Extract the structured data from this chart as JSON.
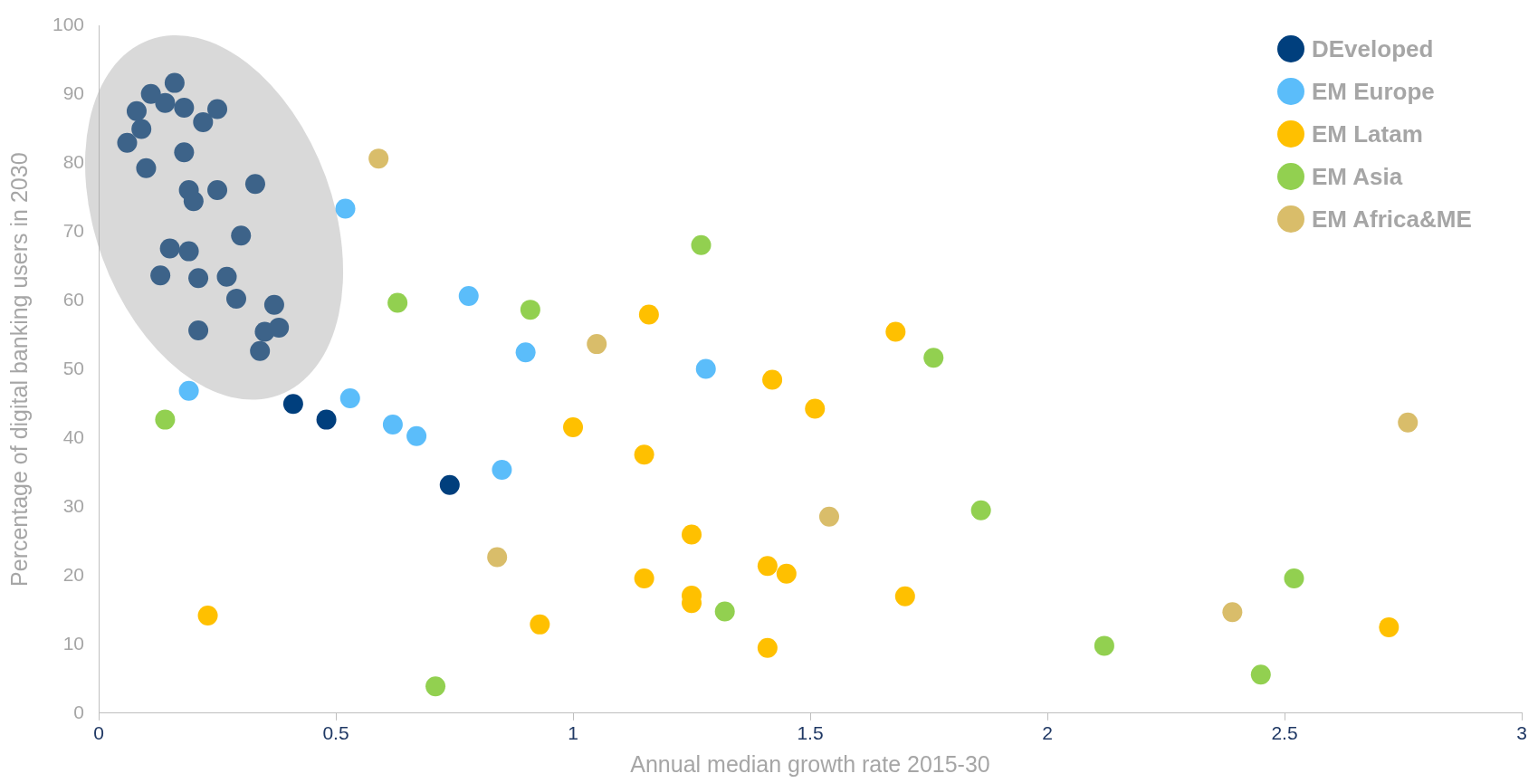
{
  "chart_data": {
    "type": "scatter",
    "xlabel": "Annual median growth rate 2015-30",
    "ylabel": "Percentage of digital banking users in 2030",
    "xlim": [
      0,
      3
    ],
    "xticks": [
      0,
      0.5,
      1,
      1.5,
      2,
      2.5,
      3
    ],
    "ylim": [
      0,
      100
    ],
    "yticks": [
      0,
      10,
      20,
      30,
      40,
      50,
      60,
      70,
      80,
      90,
      100
    ],
    "grid": false,
    "legend": "top right",
    "marker": "circle",
    "series": [
      {
        "name": "DEveloped",
        "color": "#003f7d",
        "x": [
          0.06,
          0.08,
          0.09,
          0.11,
          0.16,
          0.14,
          0.18,
          0.22,
          0.25,
          0.1,
          0.18,
          0.19,
          0.2,
          0.25,
          0.33,
          0.3,
          0.15,
          0.19,
          0.13,
          0.21,
          0.27,
          0.29,
          0.37,
          0.35,
          0.38,
          0.21,
          0.34,
          0.41,
          0.48,
          0.74
        ],
        "values": [
          83,
          87.6,
          85,
          90.1,
          91.7,
          88.8,
          88.1,
          86,
          87.9,
          79.3,
          81.6,
          76.1,
          74.5,
          76.1,
          77,
          69.5,
          67.6,
          67.2,
          63.7,
          63.3,
          63.5,
          60.3,
          59.4,
          55.5,
          56.1,
          55.7,
          52.7,
          45,
          42.7,
          33.2
        ]
      },
      {
        "name": "EM Europe",
        "color": "#5bbdfa",
        "x": [
          0.52,
          0.78,
          0.9,
          1.28,
          0.19,
          0.53,
          0.62,
          0.67,
          0.85
        ],
        "values": [
          73.4,
          60.7,
          52.5,
          50.1,
          46.9,
          45.8,
          42,
          40.3,
          35.4
        ]
      },
      {
        "name": "EM Latam",
        "color": "#ffc000",
        "x": [
          1.16,
          1.68,
          1.42,
          1.51,
          1,
          1.15,
          1.25,
          1.41,
          1.45,
          1.15,
          1.25,
          1.25,
          1.7,
          0.23,
          0.93,
          1.41,
          2.72
        ],
        "values": [
          58,
          55.5,
          48.5,
          44.3,
          41.6,
          37.6,
          26,
          21.4,
          20.3,
          19.6,
          17.1,
          16,
          17,
          14.2,
          12.9,
          9.5,
          12.5
        ]
      },
      {
        "name": "EM Asia",
        "color": "#92d050",
        "x": [
          1.27,
          0.63,
          0.91,
          1.76,
          0.14,
          1.86,
          2.52,
          1.32,
          2.12,
          2.45,
          0.71
        ],
        "values": [
          68.1,
          59.7,
          58.7,
          51.7,
          42.7,
          29.5,
          19.6,
          14.8,
          9.8,
          5.6,
          3.9
        ]
      },
      {
        "name": "EM Africa&ME",
        "color": "#d9bd6a",
        "x": [
          0.59,
          1.05,
          2.76,
          1.54,
          0.84,
          2.39
        ],
        "values": [
          80.7,
          53.7,
          42.3,
          28.6,
          22.7,
          14.7
        ]
      }
    ]
  }
}
